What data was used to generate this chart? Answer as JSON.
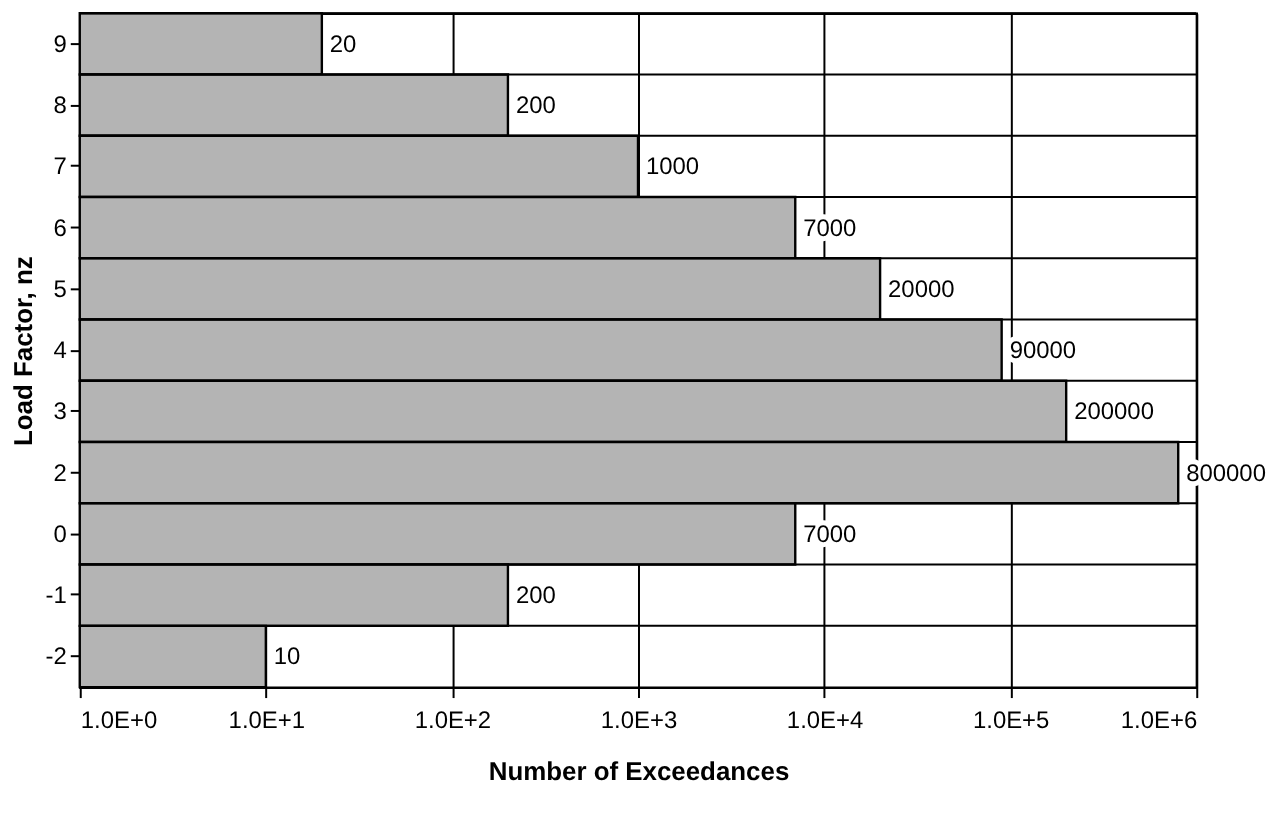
{
  "chart_data": {
    "type": "bar",
    "orientation": "horizontal",
    "log": "x",
    "xlabel": "Number of Exceedances",
    "ylabel": "Load Factor, nz",
    "categories": [
      "9",
      "8",
      "7",
      "6",
      "5",
      "4",
      "3",
      "2",
      "0",
      "-1",
      "-2"
    ],
    "values": [
      20,
      200,
      1000,
      7000,
      20000,
      90000,
      200000,
      800000,
      7000,
      200,
      10
    ],
    "color": "#b4b4b4",
    "data_labels": true,
    "grid": true,
    "xlim": [
      1,
      1000000
    ],
    "xticks": [
      {
        "value": 1,
        "label": "1.0E+0"
      },
      {
        "value": 10,
        "label": "1.0E+1"
      },
      {
        "value": 100,
        "label": "1.0E+2"
      },
      {
        "value": 1000,
        "label": "1.0E+3"
      },
      {
        "value": 10000,
        "label": "1.0E+4"
      },
      {
        "value": 100000,
        "label": "1.0E+5"
      },
      {
        "value": 1000000,
        "label": "1.0E+6"
      }
    ]
  }
}
